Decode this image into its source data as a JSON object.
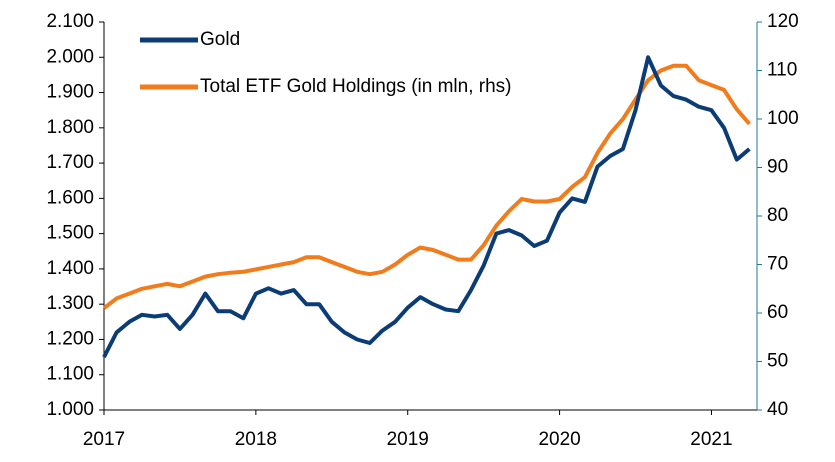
{
  "chart_data": {
    "type": "line",
    "x": [
      2017.0,
      2017.083,
      2017.167,
      2017.25,
      2017.333,
      2017.417,
      2017.5,
      2017.583,
      2017.667,
      2017.75,
      2017.833,
      2017.917,
      2018.0,
      2018.083,
      2018.167,
      2018.25,
      2018.333,
      2018.417,
      2018.5,
      2018.583,
      2018.667,
      2018.75,
      2018.833,
      2018.917,
      2019.0,
      2019.083,
      2019.167,
      2019.25,
      2019.333,
      2019.417,
      2019.5,
      2019.583,
      2019.667,
      2019.75,
      2019.833,
      2019.917,
      2020.0,
      2020.083,
      2020.167,
      2020.25,
      2020.333,
      2020.417,
      2020.5,
      2020.583,
      2020.667,
      2020.75,
      2020.833,
      2020.917,
      2021.0,
      2021.083,
      2021.167,
      2021.25
    ],
    "series": [
      {
        "name": "Total ETF Gold Holdings (in mln, rhs)",
        "color": "#f07c1c",
        "axis": "y2",
        "values": [
          61,
          63,
          64,
          65,
          65.5,
          66,
          65.5,
          66.5,
          67.5,
          68,
          68.3,
          68.5,
          69,
          69.5,
          70,
          70.5,
          71.5,
          71.5,
          70.5,
          69.5,
          68.5,
          68,
          68.5,
          70,
          72,
          73.5,
          73,
          72,
          71,
          71,
          74,
          78,
          81,
          83.5,
          83,
          83,
          83.5,
          86,
          88,
          93,
          97,
          100,
          104,
          108,
          110,
          111,
          111,
          108,
          107,
          106,
          102,
          99
        ]
      },
      {
        "name": "Gold",
        "color": "#0b3c75",
        "values": [
          1150,
          1220,
          1250,
          1270,
          1265,
          1270,
          1230,
          1270,
          1330,
          1280,
          1280,
          1260,
          1330,
          1345,
          1330,
          1340,
          1300,
          1300,
          1250,
          1220,
          1200,
          1190,
          1225,
          1250,
          1290,
          1320,
          1300,
          1285,
          1280,
          1340,
          1410,
          1500,
          1510,
          1495,
          1465,
          1480,
          1560,
          1600,
          1590,
          1690,
          1720,
          1740,
          1850,
          2000,
          1920,
          1890,
          1880,
          1860,
          1850,
          1800,
          1710,
          1740
        ]
      }
    ],
    "xlim": [
      2017,
      2021.3
    ],
    "xticks": [
      2017,
      2018,
      2019,
      2020,
      2021
    ],
    "ylim": [
      1000,
      2100
    ],
    "yticks": [
      {
        "value": 1000,
        "label": "1.000"
      },
      {
        "value": 1100,
        "label": "1.100"
      },
      {
        "value": 1200,
        "label": "1.200"
      },
      {
        "value": 1300,
        "label": "1.300"
      },
      {
        "value": 1400,
        "label": "1.400"
      },
      {
        "value": 1500,
        "label": "1.500"
      },
      {
        "value": 1600,
        "label": "1.600"
      },
      {
        "value": 1700,
        "label": "1.700"
      },
      {
        "value": 1800,
        "label": "1.800"
      },
      {
        "value": 1900,
        "label": "1.900"
      },
      {
        "value": 2000,
        "label": "2.000"
      },
      {
        "value": 2100,
        "label": "2.100"
      }
    ],
    "y2lim": [
      40,
      120
    ],
    "y2ticks": [
      40,
      50,
      60,
      70,
      80,
      90,
      100,
      110,
      120
    ],
    "legend": "upper left",
    "grid": false
  }
}
